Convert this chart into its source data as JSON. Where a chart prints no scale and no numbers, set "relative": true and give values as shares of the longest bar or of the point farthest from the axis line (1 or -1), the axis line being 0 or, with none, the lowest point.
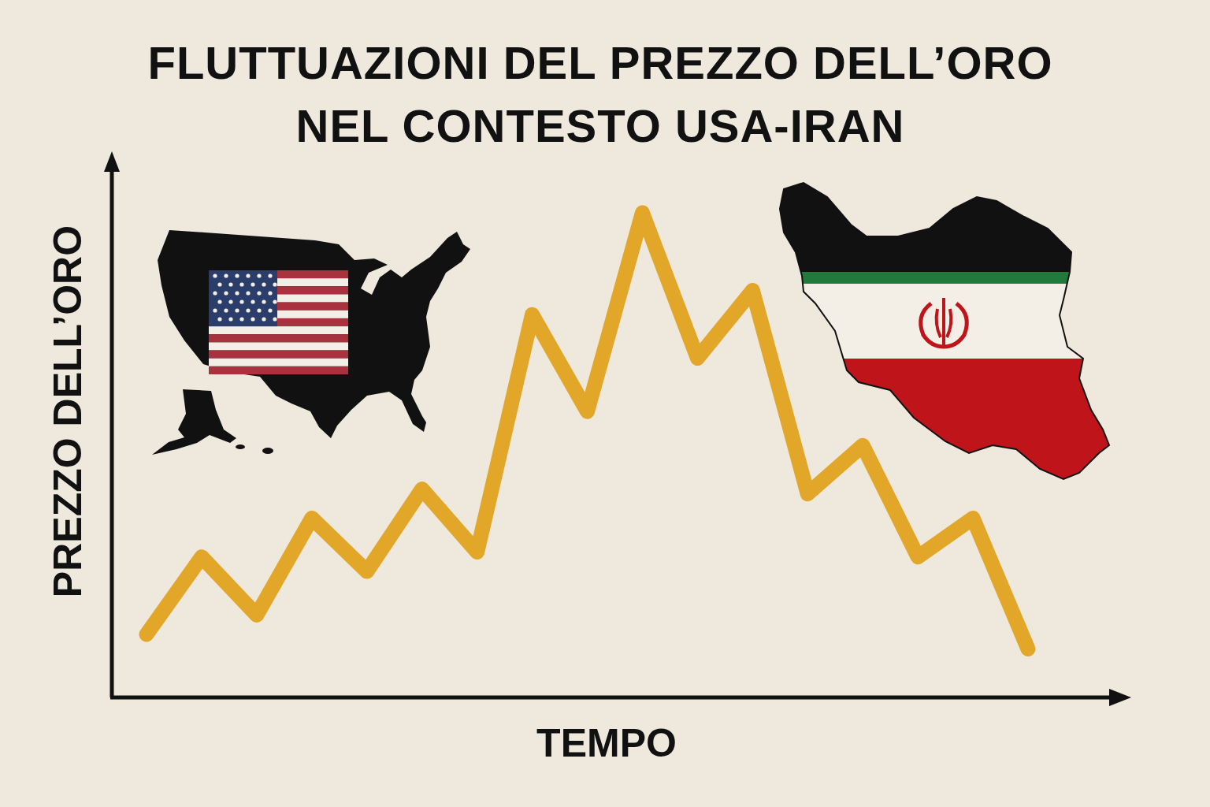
{
  "chart_data": {
    "type": "line",
    "title": "FLUTTUAZIONI DEL PREZZO DELL’ORO\nNEL CONTESTO USA-IRAN",
    "xlabel": "TEMPO",
    "ylabel": "PREZZO DELL’ORO",
    "relative": true,
    "categories": [
      null,
      null,
      null,
      null,
      null,
      null,
      null,
      null,
      null,
      null,
      null,
      null,
      null,
      null,
      null,
      null,
      null
    ],
    "series": [
      {
        "color": "#e2a729",
        "values": [
          0.13,
          0.29,
          0.17,
          0.37,
          0.26,
          0.43,
          0.3,
          0.79,
          0.59,
          1.0,
          0.7,
          0.84,
          0.42,
          0.52,
          0.29,
          0.37,
          0.1
        ]
      }
    ]
  }
}
